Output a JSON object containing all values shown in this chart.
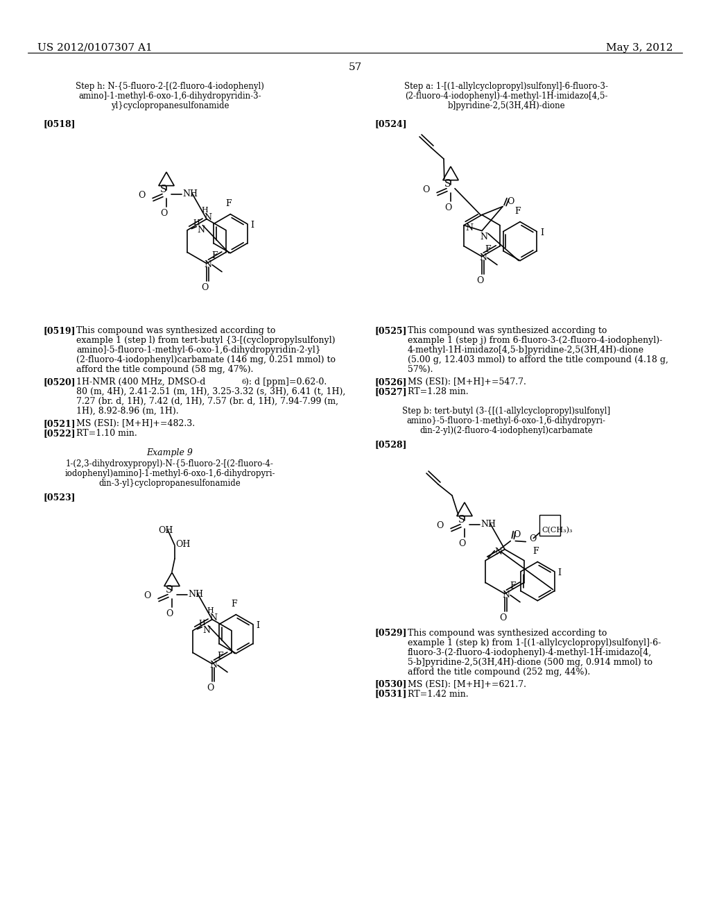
{
  "header_left": "US 2012/0107307 A1",
  "header_right": "May 3, 2012",
  "page_number": "57",
  "bg": "#ffffff"
}
